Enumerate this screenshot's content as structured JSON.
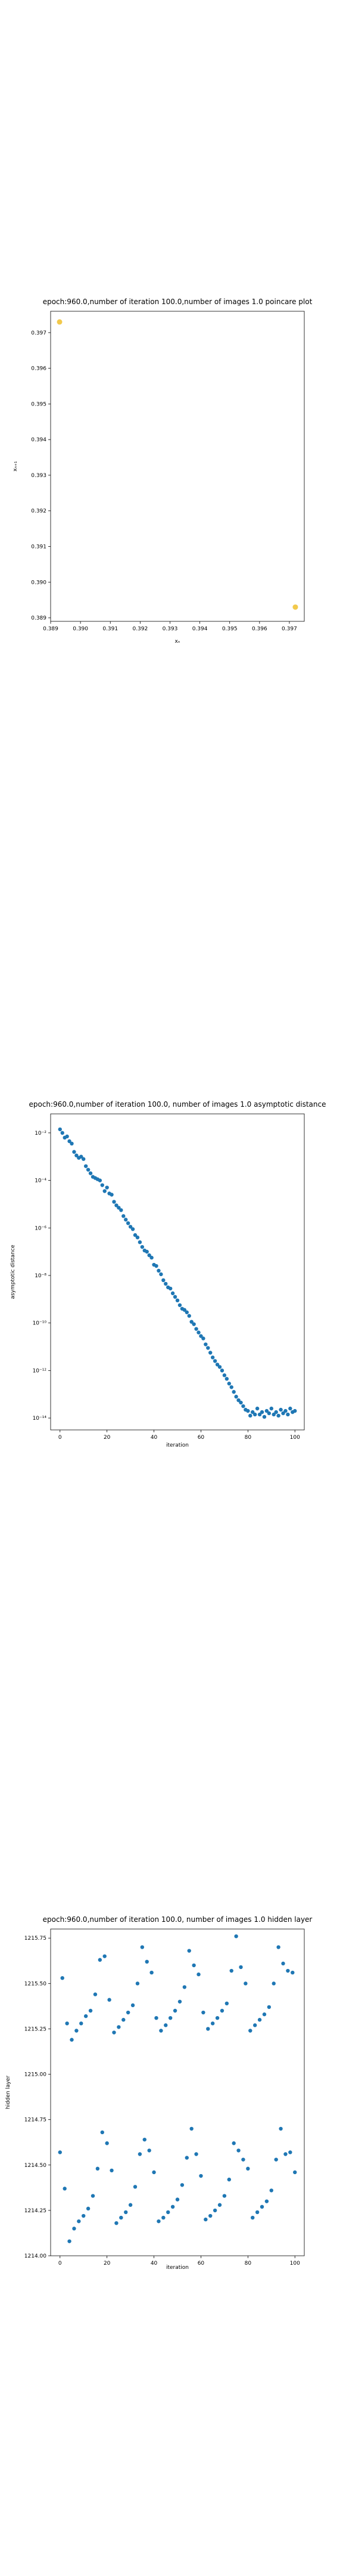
{
  "chart_data": [
    {
      "type": "scatter",
      "title": "epoch:960.0,number of iteration 100.0,number of images 1.0 poincare plot",
      "xlabel": "xₙ",
      "ylabel": "xₙ₊₁",
      "xlim": [
        0.389,
        0.3975
      ],
      "ylim": [
        0.3889,
        0.3976
      ],
      "xticks": [
        0.389,
        0.39,
        0.391,
        0.392,
        0.393,
        0.394,
        0.395,
        0.396,
        0.397
      ],
      "yticks": [
        0.389,
        0.39,
        0.391,
        0.392,
        0.393,
        0.394,
        0.395,
        0.396,
        0.397
      ],
      "tick_labels_x": [
        "0.389",
        "0.390",
        "0.391",
        "0.392",
        "0.393",
        "0.394",
        "0.395",
        "0.396",
        "0.397"
      ],
      "tick_labels_y": [
        "0.389",
        "0.390",
        "0.391",
        "0.392",
        "0.393",
        "0.394",
        "0.395",
        "0.396",
        "0.397"
      ],
      "points": [
        [
          0.3893,
          0.3973
        ],
        [
          0.3972,
          0.3893
        ]
      ],
      "marker_color": "#f2c94c"
    },
    {
      "type": "scatter",
      "title": "epoch:960.0,number of iteration 100.0, number of images 1.0 asymptotic distance",
      "xlabel": "iteration",
      "ylabel": "asymptotic distance",
      "yscale": "log",
      "xlim": [
        -4,
        104
      ],
      "ylim_exp": [
        -14.5,
        -1.2
      ],
      "xticks": [
        0,
        20,
        40,
        60,
        80,
        100
      ],
      "tick_labels_x": [
        "0",
        "20",
        "40",
        "60",
        "80",
        "100"
      ],
      "yticks_exp": [
        -2,
        -4,
        -6,
        -8,
        -10,
        -12,
        -14
      ],
      "tick_labels_y": [
        "10⁻²",
        "10⁻⁴",
        "10⁻⁶",
        "10⁻⁸",
        "10⁻¹⁰",
        "10⁻¹²",
        "10⁻¹⁴"
      ],
      "log10_values": [
        -1.85,
        -2.0,
        -2.2,
        -2.15,
        -2.35,
        -2.45,
        -2.8,
        -2.95,
        -3.05,
        -3.0,
        -3.1,
        -3.4,
        -3.55,
        -3.7,
        -3.85,
        -3.9,
        -3.95,
        -4.0,
        -4.2,
        -4.45,
        -4.3,
        -4.55,
        -4.6,
        -4.9,
        -5.05,
        -5.15,
        -5.25,
        -5.5,
        -5.65,
        -5.8,
        -5.95,
        -6.05,
        -6.3,
        -6.4,
        -6.6,
        -6.8,
        -6.95,
        -7.0,
        -7.15,
        -7.25,
        -7.55,
        -7.6,
        -7.8,
        -7.95,
        -8.2,
        -8.35,
        -8.5,
        -8.55,
        -8.75,
        -8.9,
        -9.05,
        -9.25,
        -9.4,
        -9.45,
        -9.55,
        -9.7,
        -9.95,
        -10.05,
        -10.25,
        -10.4,
        -10.55,
        -10.65,
        -10.9,
        -11.05,
        -11.25,
        -11.45,
        -11.6,
        -11.75,
        -11.85,
        -12.0,
        -12.2,
        -12.35,
        -12.55,
        -12.7,
        -12.9,
        -13.1,
        -13.25,
        -13.35,
        -13.5,
        -13.65,
        -13.7,
        -13.9,
        -13.75,
        -13.85,
        -13.6,
        -13.85,
        -13.75,
        -13.95,
        -13.7,
        -13.8,
        -13.6,
        -13.85,
        -13.75,
        -13.9,
        -13.65,
        -13.8,
        -13.7,
        -13.85,
        -13.6,
        -13.75,
        -13.7
      ],
      "marker_color": "#1f77b4"
    },
    {
      "type": "scatter",
      "title": "epoch:960.0,number of iteration 100.0, number of images 1.0 hidden layer",
      "xlabel": "iteration",
      "ylabel": "hidden layer",
      "xlim": [
        -4,
        104
      ],
      "ylim": [
        1214.0,
        1215.8
      ],
      "xticks": [
        0,
        20,
        40,
        60,
        80,
        100
      ],
      "tick_labels_x": [
        "0",
        "20",
        "40",
        "60",
        "80",
        "100"
      ],
      "yticks": [
        1214.0,
        1214.25,
        1214.5,
        1214.75,
        1215.0,
        1215.25,
        1215.5,
        1215.75
      ],
      "tick_labels_y": [
        "1214.00",
        "1214.25",
        "1214.50",
        "1214.75",
        "1215.00",
        "1215.25",
        "1215.50",
        "1215.75"
      ],
      "values": [
        1214.57,
        1215.53,
        1214.37,
        1215.28,
        1214.08,
        1215.19,
        1214.15,
        1215.24,
        1214.19,
        1215.28,
        1214.22,
        1215.32,
        1214.26,
        1215.35,
        1214.33,
        1215.44,
        1214.48,
        1215.63,
        1214.68,
        1215.65,
        1214.62,
        1215.41,
        1214.47,
        1215.23,
        1214.18,
        1215.26,
        1214.21,
        1215.3,
        1214.24,
        1215.34,
        1214.28,
        1215.38,
        1214.38,
        1215.5,
        1214.56,
        1215.7,
        1214.64,
        1215.62,
        1214.58,
        1215.56,
        1214.46,
        1215.31,
        1214.19,
        1215.24,
        1214.21,
        1215.27,
        1214.24,
        1215.31,
        1214.27,
        1215.35,
        1214.31,
        1215.4,
        1214.39,
        1215.48,
        1214.54,
        1215.68,
        1214.7,
        1215.6,
        1214.56,
        1215.55,
        1214.44,
        1215.34,
        1214.2,
        1215.25,
        1214.22,
        1215.28,
        1214.25,
        1215.31,
        1214.28,
        1215.35,
        1214.33,
        1215.39,
        1214.42,
        1215.57,
        1214.62,
        1215.76,
        1214.58,
        1215.59,
        1214.53,
        1215.5,
        1214.48,
        1215.24,
        1214.21,
        1215.27,
        1214.24,
        1215.3,
        1214.27,
        1215.33,
        1214.3,
        1215.37,
        1214.36,
        1215.5,
        1214.53,
        1215.7,
        1214.7,
        1215.61,
        1214.56,
        1215.57,
        1214.57,
        1215.56,
        1214.46
      ],
      "marker_color": "#1f77b4"
    }
  ]
}
